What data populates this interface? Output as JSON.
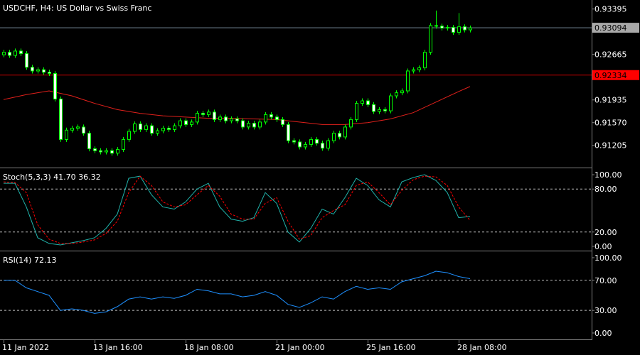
{
  "chart_data": [
    {
      "type": "candlestick",
      "title": "USDCHF, H4:  US Dollar vs Swiss Franc",
      "categories": [
        "11 Jan 2022",
        null,
        null,
        null,
        null,
        null,
        null,
        null,
        null,
        null,
        null,
        null,
        null,
        null,
        null,
        null,
        "13 Jan 16:00",
        null,
        null,
        null,
        null,
        null,
        null,
        null,
        null,
        null,
        null,
        null,
        null,
        null,
        null,
        null,
        "18 Jan 08:00",
        null,
        null,
        null,
        null,
        null,
        null,
        null,
        null,
        null,
        null,
        null,
        null,
        null,
        null,
        null,
        "21 Jan 00:00",
        null,
        null,
        null,
        null,
        null,
        null,
        null,
        null,
        null,
        null,
        null,
        null,
        null,
        null,
        null,
        "25 Jan 16:00",
        null,
        null,
        null,
        null,
        null,
        null,
        null,
        null,
        null,
        null,
        null,
        null,
        null,
        null,
        null,
        "28 Jan 08:00",
        null,
        null
      ],
      "open": [
        0.9266,
        0.927,
        0.9265,
        0.9272,
        0.9268,
        0.9246,
        0.924,
        0.9242,
        0.9238,
        0.9236,
        0.9195,
        0.913,
        0.9145,
        0.9148,
        0.915,
        0.914,
        0.9115,
        0.9112,
        0.911,
        0.9112,
        0.9108,
        0.9114,
        0.913,
        0.9143,
        0.9155,
        0.9146,
        0.9152,
        0.914,
        0.9144,
        0.9148,
        0.9146,
        0.9152,
        0.916,
        0.9154,
        0.9158,
        0.9172,
        0.917,
        0.9174,
        0.9162,
        0.9166,
        0.916,
        0.9163,
        0.916,
        0.915,
        0.9156,
        0.915,
        0.9158,
        0.917,
        0.9166,
        0.9162,
        0.9154,
        0.9128,
        0.9126,
        0.9118,
        0.9122,
        0.913,
        0.9124,
        0.9116,
        0.9128,
        0.914,
        0.9134,
        0.915,
        0.9162,
        0.9188,
        0.9192,
        0.9186,
        0.9175,
        0.9178,
        0.9176,
        0.92,
        0.9205,
        0.9208,
        0.924,
        0.9242,
        0.9245,
        0.927,
        0.9313,
        0.9312,
        0.9309,
        0.931,
        0.9302,
        0.9311,
        0.9306
      ],
      "high": [
        0.9274,
        0.9274,
        0.9276,
        0.9276,
        0.9272,
        0.925,
        0.9246,
        0.9246,
        0.9242,
        0.924,
        0.9199,
        0.9149,
        0.9152,
        0.9154,
        0.9154,
        0.9144,
        0.9119,
        0.9116,
        0.9116,
        0.9116,
        0.9118,
        0.9134,
        0.9147,
        0.9159,
        0.9159,
        0.9156,
        0.9156,
        0.9148,
        0.9152,
        0.9152,
        0.9156,
        0.9164,
        0.9164,
        0.9162,
        0.9176,
        0.9176,
        0.9178,
        0.9178,
        0.917,
        0.917,
        0.9167,
        0.9167,
        0.9164,
        0.916,
        0.916,
        0.9162,
        0.9174,
        0.9174,
        0.917,
        0.9166,
        0.9158,
        0.9132,
        0.913,
        0.9126,
        0.9134,
        0.9134,
        0.9128,
        0.9132,
        0.9144,
        0.9144,
        0.9154,
        0.9166,
        0.9192,
        0.9196,
        0.9196,
        0.919,
        0.9182,
        0.9182,
        0.9204,
        0.9209,
        0.9212,
        0.9244,
        0.9246,
        0.9249,
        0.9274,
        0.9317,
        0.9337,
        0.9316,
        0.9314,
        0.9314,
        0.9333,
        0.9315,
        0.9313
      ],
      "low": [
        0.9262,
        0.9261,
        0.9261,
        0.9264,
        0.9242,
        0.9236,
        0.9236,
        0.9234,
        0.9232,
        0.9191,
        0.9126,
        0.9126,
        0.9141,
        0.9144,
        0.9136,
        0.9111,
        0.9108,
        0.9106,
        0.9106,
        0.9104,
        0.9104,
        0.911,
        0.9126,
        0.9139,
        0.9142,
        0.9142,
        0.9136,
        0.9136,
        0.914,
        0.9142,
        0.9142,
        0.9148,
        0.915,
        0.915,
        0.9154,
        0.9166,
        0.9166,
        0.9158,
        0.9158,
        0.9156,
        0.9156,
        0.9156,
        0.9146,
        0.9146,
        0.9146,
        0.9146,
        0.9154,
        0.9162,
        0.9158,
        0.915,
        0.9124,
        0.9122,
        0.9114,
        0.9114,
        0.9118,
        0.912,
        0.9112,
        0.9112,
        0.9124,
        0.913,
        0.913,
        0.9146,
        0.9158,
        0.9184,
        0.9182,
        0.9171,
        0.9171,
        0.9172,
        0.9172,
        0.9196,
        0.9201,
        0.9204,
        0.9236,
        0.9238,
        0.9241,
        0.9266,
        0.9308,
        0.9305,
        0.9305,
        0.9298,
        0.9298,
        0.9302,
        0.9302
      ],
      "close": [
        0.927,
        0.9265,
        0.9272,
        0.9268,
        0.9246,
        0.924,
        0.9242,
        0.9238,
        0.9236,
        0.9195,
        0.913,
        0.9145,
        0.9148,
        0.915,
        0.914,
        0.9115,
        0.9112,
        0.911,
        0.9112,
        0.9108,
        0.9114,
        0.913,
        0.9143,
        0.9155,
        0.9146,
        0.9152,
        0.914,
        0.9144,
        0.9148,
        0.9146,
        0.9152,
        0.916,
        0.9154,
        0.9158,
        0.9172,
        0.917,
        0.9174,
        0.9162,
        0.9166,
        0.916,
        0.9163,
        0.916,
        0.915,
        0.9156,
        0.915,
        0.9158,
        0.917,
        0.9166,
        0.9162,
        0.9154,
        0.9128,
        0.9126,
        0.9118,
        0.9122,
        0.913,
        0.9124,
        0.9116,
        0.9128,
        0.914,
        0.9134,
        0.915,
        0.9162,
        0.9188,
        0.9192,
        0.9186,
        0.9175,
        0.9178,
        0.9176,
        0.92,
        0.9205,
        0.9208,
        0.924,
        0.9242,
        0.9245,
        0.927,
        0.9313,
        0.9312,
        0.9309,
        0.931,
        0.9302,
        0.9311,
        0.9306,
        0.9309
      ],
      "candle_color": "#00ff00",
      "bull_fill": "#000000",
      "bear_fill": "#ffffff",
      "ma": {
        "color": "#e0201b",
        "x": [
          0,
          4,
          8,
          12,
          16,
          20,
          24,
          28,
          32,
          36,
          40,
          44,
          48,
          52,
          56,
          60,
          64,
          68,
          72,
          76,
          80,
          82
        ],
        "values": [
          0.9194,
          0.9202,
          0.9208,
          0.92,
          0.9188,
          0.9178,
          0.9172,
          0.9168,
          0.9166,
          0.9164,
          0.9164,
          0.9163,
          0.9162,
          0.9158,
          0.9154,
          0.9154,
          0.9157,
          0.9163,
          0.9173,
          0.919,
          0.9207,
          0.9215
        ]
      },
      "price_lines": [
        {
          "value": 0.93094,
          "color": "#778899",
          "box": "#a9a9a9"
        },
        {
          "value": 0.92334,
          "color": "#c00000",
          "box": "#ff0000"
        }
      ],
      "ylim": [
        0.9086,
        0.9354
      ],
      "yticks": [
        0.93395,
        0.92665,
        0.91935,
        {
          "value": 0.9157,
          "label": "0.91570"
        },
        0.91205
      ]
    },
    {
      "type": "line",
      "title": "Stoch(5,3,3) 41.70 36.32",
      "x": [
        0,
        2,
        4,
        6,
        8,
        10,
        12,
        14,
        16,
        18,
        20,
        22,
        24,
        26,
        28,
        30,
        32,
        34,
        36,
        38,
        40,
        42,
        44,
        46,
        48,
        50,
        52,
        54,
        56,
        58,
        60,
        62,
        64,
        66,
        68,
        70,
        72,
        74,
        76,
        78,
        80,
        82
      ],
      "series": [
        {
          "color": "#20b2aa",
          "values": [
            88,
            88,
            55,
            12,
            4,
            2,
            5,
            8,
            12,
            25,
            45,
            95,
            98,
            72,
            55,
            52,
            62,
            80,
            88,
            55,
            38,
            35,
            40,
            75,
            60,
            20,
            6,
            25,
            52,
            45,
            68,
            95,
            85,
            65,
            55,
            90,
            96,
            100,
            92,
            75,
            40,
            41.7
          ]
        },
        {
          "color": "#ff0000",
          "dashed": true,
          "values": [
            90,
            89,
            75,
            30,
            10,
            4,
            4,
            6,
            9,
            18,
            35,
            75,
            98,
            85,
            62,
            55,
            58,
            72,
            85,
            70,
            45,
            38,
            38,
            60,
            68,
            35,
            10,
            15,
            40,
            50,
            58,
            85,
            90,
            75,
            58,
            78,
            93,
            98,
            97,
            85,
            55,
            36.32
          ]
        }
      ],
      "levels": [
        80,
        20
      ],
      "ylim": [
        -5,
        108
      ],
      "yticks": [
        {
          "value": 100,
          "label": "100.00"
        },
        {
          "value": 80,
          "label": "80.00"
        },
        {
          "value": 20,
          "label": "20.00"
        },
        {
          "value": 0,
          "label": "0.00"
        }
      ]
    },
    {
      "type": "line",
      "title": "RSI(14) 72.13",
      "x": [
        0,
        2,
        4,
        6,
        8,
        10,
        12,
        14,
        16,
        18,
        20,
        22,
        24,
        26,
        28,
        30,
        32,
        34,
        36,
        38,
        40,
        42,
        44,
        46,
        48,
        50,
        52,
        54,
        56,
        58,
        60,
        62,
        64,
        66,
        68,
        70,
        72,
        74,
        76,
        78,
        80,
        82
      ],
      "series": [
        {
          "color": "#1e90ff",
          "values": [
            70,
            70,
            60,
            55,
            50,
            30,
            32,
            30,
            26,
            28,
            35,
            45,
            48,
            45,
            48,
            46,
            50,
            58,
            56,
            52,
            52,
            48,
            50,
            55,
            50,
            38,
            34,
            40,
            48,
            45,
            55,
            62,
            58,
            60,
            58,
            68,
            72,
            76,
            82,
            80,
            75,
            72.13
          ]
        }
      ],
      "levels": [
        70,
        30
      ],
      "ylim": [
        -8.5,
        107.5
      ],
      "yticks": [
        {
          "value": 100,
          "label": "100.00"
        },
        {
          "value": 70,
          "label": "70.00"
        },
        {
          "value": 30,
          "label": "30.00"
        },
        {
          "value": 0,
          "label": "0.00"
        }
      ]
    }
  ]
}
